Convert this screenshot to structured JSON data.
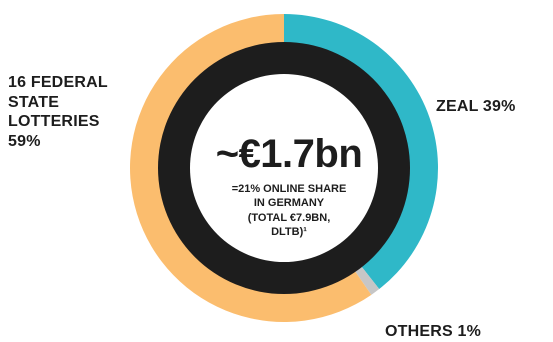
{
  "chart_data": {
    "type": "pie",
    "variant": "donut",
    "center_value": "~€1.7bn",
    "center_note": "=21% ONLINE SHARE\nIN GERMANY\n(TOTAL €7.9BN,\nDLTB)¹",
    "slices": [
      {
        "label": "ZEAL 39%",
        "value": 39,
        "color": "#2fb8c8"
      },
      {
        "label": "OTHERS 1%",
        "value": 1,
        "color": "#c6c6c6"
      },
      {
        "label": "16 FEDERAL\nSTATE\nLOTTERIES\n59%",
        "value": 59,
        "color": "#fbbd6e"
      }
    ]
  },
  "colors": {
    "ring_inner": "#1d1d1d",
    "hole": "#ffffff",
    "text": "#1d1d1d"
  }
}
